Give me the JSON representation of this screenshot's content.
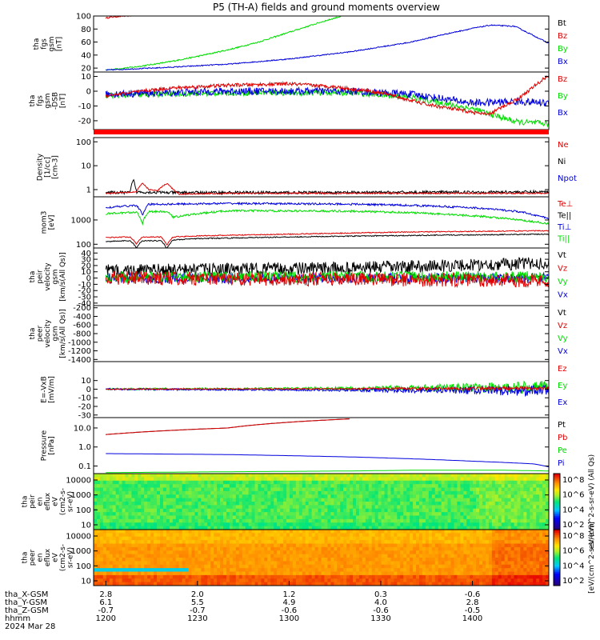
{
  "title": "P5 (TH-A) fields and ground moments overview",
  "colors": {
    "black": "#000000",
    "red": "#e00000",
    "green": "#00dd00",
    "blue": "#0000dd",
    "accent_bar": "#ff0000"
  },
  "chart_data": [
    {
      "type": "line",
      "id": "fgs-btot",
      "ylabel": [
        "tha",
        "fgs",
        "gsm",
        "[nT]"
      ],
      "yticks": [
        "100",
        "80",
        "60",
        "40",
        "20"
      ],
      "ylim": [
        14,
        100
      ],
      "legend": [
        {
          "label": "Bt",
          "color": "black"
        },
        {
          "label": "Bz",
          "color": "red"
        },
        {
          "label": "By",
          "color": "green"
        },
        {
          "label": "Bx",
          "color": "blue"
        }
      ],
      "series": [
        {
          "color": "red",
          "noise": 1.2,
          "x": [
            0,
            3,
            6,
            9
          ],
          "y": [
            97,
            99,
            100,
            101
          ]
        },
        {
          "color": "green",
          "noise": 1.0,
          "x": [
            0,
            10,
            20,
            30,
            40,
            50,
            60,
            70,
            78
          ],
          "y": [
            17,
            22,
            29,
            38,
            48,
            60,
            75,
            90,
            101
          ]
        },
        {
          "color": "blue",
          "noise": 0.8,
          "x": [
            0,
            20,
            40,
            60,
            80,
            100,
            110,
            120,
            126,
            134,
            140,
            145
          ],
          "y": [
            17,
            21,
            26,
            34,
            45,
            60,
            71,
            81,
            86,
            84,
            70,
            58
          ]
        }
      ]
    },
    {
      "type": "line",
      "id": "fgs-comp",
      "ylabel": [
        "tha",
        "fgs",
        "gsm",
        "-DSB",
        "[nT]"
      ],
      "yticks": [
        "10",
        "0",
        "-10",
        "-20"
      ],
      "ylim": [
        -26,
        13
      ],
      "legend": [
        {
          "label": "Bz",
          "color": "red"
        },
        {
          "label": "By",
          "color": "green"
        },
        {
          "label": "Bx",
          "color": "blue"
        }
      ],
      "series": [
        {
          "color": "green",
          "noise": 2.0,
          "x": [
            0,
            40,
            80,
            100,
            120,
            135,
            145
          ],
          "y": [
            -3,
            -1,
            -1,
            -4,
            -12,
            -21,
            -22
          ]
        },
        {
          "color": "blue",
          "noise": 2.5,
          "x": [
            0,
            40,
            80,
            100,
            110,
            120,
            135,
            145
          ],
          "y": [
            -2,
            0,
            0,
            -2,
            -5,
            -8,
            -7,
            -8
          ]
        },
        {
          "color": "red",
          "noise": 1.2,
          "x": [
            0,
            20,
            40,
            60,
            75,
            90,
            105,
            125,
            135,
            145
          ],
          "y": [
            -3,
            2,
            4,
            5,
            3,
            -1,
            -9,
            -16,
            -5,
            11
          ]
        }
      ]
    },
    {
      "type": "line",
      "id": "density",
      "log": true,
      "ylabel": [
        "Density",
        "[1/cc]",
        "[cm-3]"
      ],
      "yticks": [
        "100",
        "10",
        "1"
      ],
      "ylim": [
        0.5,
        150
      ],
      "legend": [
        {
          "label": "Ne",
          "color": "red"
        },
        {
          "label": "Ni",
          "color": "black"
        },
        {
          "label": "Npot",
          "color": "blue"
        }
      ],
      "series": [
        {
          "color": "black",
          "noise": 0.12,
          "x": [
            0,
            8,
            9,
            10,
            20,
            80,
            145
          ],
          "y": [
            0.75,
            0.75,
            2.5,
            0.8,
            0.75,
            0.75,
            0.8
          ]
        },
        {
          "color": "red",
          "noise": 0.05,
          "x": [
            0,
            10,
            12,
            14,
            17,
            20,
            22,
            24,
            40,
            145
          ],
          "y": [
            0.7,
            0.8,
            1.8,
            1.0,
            0.9,
            1.8,
            1.0,
            0.65,
            0.7,
            0.7
          ]
        }
      ]
    },
    {
      "type": "line",
      "id": "temp",
      "log": true,
      "ylabel": [
        "mom3",
        "[eV]"
      ],
      "yticks": [
        "1000",
        "100"
      ],
      "ylim": [
        70,
        9000
      ],
      "legend": [
        {
          "label": "Te⊥",
          "color": "red"
        },
        {
          "label": "Te||",
          "color": "black"
        },
        {
          "label": "Ti⊥",
          "color": "blue"
        },
        {
          "label": "Ti||",
          "color": "green"
        }
      ],
      "series": [
        {
          "color": "blue",
          "noise": 0.08,
          "x": [
            0,
            10,
            12,
            14,
            40,
            80,
            100,
            120,
            135,
            145
          ],
          "y": [
            3200,
            4000,
            1500,
            4400,
            4800,
            4500,
            4000,
            3200,
            2200,
            1100
          ]
        },
        {
          "color": "green",
          "noise": 0.08,
          "x": [
            0,
            10,
            12,
            14,
            20,
            22,
            40,
            80,
            100,
            120,
            135,
            145
          ],
          "y": [
            1800,
            2100,
            700,
            2200,
            2200,
            1300,
            2400,
            2300,
            2000,
            1500,
            1000,
            700
          ]
        },
        {
          "color": "red",
          "noise": 0.04,
          "x": [
            0,
            8,
            10,
            12,
            18,
            20,
            22,
            30,
            60,
            100,
            145
          ],
          "y": [
            190,
            200,
            100,
            200,
            200,
            90,
            200,
            220,
            260,
            320,
            360
          ]
        },
        {
          "color": "black",
          "noise": 0.04,
          "x": [
            0,
            8,
            10,
            12,
            18,
            20,
            22,
            30,
            60,
            100,
            145
          ],
          "y": [
            130,
            140,
            70,
            140,
            140,
            65,
            150,
            170,
            200,
            230,
            260
          ]
        }
      ]
    },
    {
      "type": "line",
      "id": "peir-vel",
      "ylabel": [
        "tha",
        "peir",
        "velocity",
        "gsm",
        "[km/s(All Qs)]"
      ],
      "yticks": [
        "40",
        "30",
        "20",
        "10",
        "0",
        "-10",
        "-20",
        "-30",
        "-40"
      ],
      "ylim": [
        -44,
        48
      ],
      "legend": [
        {
          "label": "Vt",
          "color": "black"
        },
        {
          "label": "Vz",
          "color": "red"
        },
        {
          "label": "Vy",
          "color": "green"
        },
        {
          "label": "Vx",
          "color": "blue"
        }
      ],
      "series": [
        {
          "color": "black",
          "noise": 10,
          "x": [
            0,
            80,
            145
          ],
          "y": [
            12,
            16,
            24
          ]
        },
        {
          "color": "blue",
          "noise": 8,
          "x": [
            0,
            145
          ],
          "y": [
            0,
            0
          ]
        },
        {
          "color": "green",
          "noise": 9,
          "x": [
            0,
            145
          ],
          "y": [
            2,
            2
          ]
        },
        {
          "color": "red",
          "noise": 11,
          "x": [
            0,
            80,
            145
          ],
          "y": [
            0,
            -2,
            -4
          ]
        }
      ]
    },
    {
      "type": "line",
      "id": "peer-vel",
      "ylabel": [
        "tha",
        "peer",
        "velocity",
        "gsm",
        "[km/s(All Qs)]"
      ],
      "yticks": [
        "-200",
        "-400",
        "-600",
        "-800",
        "-1000",
        "-1200",
        "-1400"
      ],
      "ylim": [
        -1450,
        -150
      ],
      "legend": [
        {
          "label": "Vt",
          "color": "black"
        },
        {
          "label": "Vz",
          "color": "red"
        },
        {
          "label": "Vy",
          "color": "green"
        },
        {
          "label": "Vx",
          "color": "blue"
        }
      ],
      "series": []
    },
    {
      "type": "line",
      "id": "efield",
      "ylabel": [
        "E=-VxB",
        "[mV/m]"
      ],
      "yticks": [
        "10",
        "0",
        "-10",
        "-20",
        "-30"
      ],
      "ylim": [
        -33,
        32
      ],
      "legend": [
        {
          "label": "Ez",
          "color": "red"
        },
        {
          "label": "Ey",
          "color": "green"
        },
        {
          "label": "Ex",
          "color": "blue"
        }
      ],
      "series": [
        {
          "color": "green",
          "noise": 1.2,
          "growth": 7,
          "x": [
            0,
            145
          ],
          "y": [
            0,
            2
          ]
        },
        {
          "color": "blue",
          "noise": 1.0,
          "growth": 6,
          "x": [
            0,
            145
          ],
          "y": [
            0,
            -2
          ]
        },
        {
          "color": "red",
          "noise": 0.6,
          "growth": 2,
          "x": [
            0,
            145
          ],
          "y": [
            0,
            1
          ]
        }
      ]
    },
    {
      "type": "line",
      "id": "pressure",
      "log": true,
      "ylabel": [
        "Pressure",
        "[nPa]"
      ],
      "yticks": [
        "10.0",
        "1.0",
        "0.1"
      ],
      "ylim": [
        0.04,
        35
      ],
      "legend": [
        {
          "label": "Pt",
          "color": "black"
        },
        {
          "label": "Pb",
          "color": "red"
        },
        {
          "label": "Pe",
          "color": "green"
        },
        {
          "label": "Pi",
          "color": "blue"
        }
      ],
      "series": [
        {
          "color": "black",
          "noise": 0,
          "x": [
            0,
            40,
            80
          ],
          "y": [
            4.5,
            10,
            30
          ]
        },
        {
          "color": "red",
          "noise": 0,
          "x": [
            0,
            40,
            80
          ],
          "y": [
            4.5,
            10,
            30
          ]
        },
        {
          "color": "blue",
          "noise": 0,
          "x": [
            0,
            40,
            80,
            120,
            140,
            145
          ],
          "y": [
            0.45,
            0.4,
            0.3,
            0.18,
            0.13,
            0.09
          ]
        },
        {
          "color": "green",
          "noise": 0,
          "x": [
            0,
            40,
            80,
            100,
            130,
            145
          ],
          "y": [
            0.045,
            0.05,
            0.055,
            0.06,
            0.06,
            0.055
          ]
        }
      ]
    },
    {
      "type": "heatmap",
      "id": "peir-en",
      "ylabel": [
        "tha",
        "peir",
        "en",
        "eflux",
        "eV",
        "(cm2-s-",
        "sr-eV)"
      ],
      "yticks": [
        "10000",
        "1000",
        "100",
        "10"
      ],
      "base": "green"
    },
    {
      "type": "heatmap",
      "id": "peer-en",
      "ylabel": [
        "tha",
        "peer",
        "en",
        "eflux",
        "eV",
        "(cm2-s-",
        "sr-eV)"
      ],
      "yticks": [
        "10000",
        "1000",
        "100",
        "10"
      ],
      "base": "orange"
    }
  ],
  "colorbars": [
    {
      "ticks": [
        "10^8",
        "10^6",
        "10^4",
        "10^2"
      ],
      "label": "eV/(cm^2-s-sr-eV) (All Qs)"
    },
    {
      "ticks": [
        "10^8",
        "10^6",
        "10^4",
        "10^2"
      ],
      "label": "[eV/(cm^2-s-sr-eV)]"
    }
  ],
  "xaxis": {
    "ticks_x": [
      0,
      30,
      60,
      90,
      120
    ],
    "rows": [
      {
        "label": "tha_X-GSM",
        "values": [
          "2.8",
          "2.0",
          "1.2",
          "0.3",
          "-0.6"
        ]
      },
      {
        "label": "tha_Y-GSM",
        "values": [
          "6.1",
          "5.5",
          "4.9",
          "4.0",
          "2.8"
        ]
      },
      {
        "label": "tha_Z-GSM",
        "values": [
          "-0.7",
          "-0.7",
          "-0.6",
          "-0.6",
          "-0.5"
        ]
      },
      {
        "label": "hhmm",
        "values": [
          "1200",
          "1230",
          "1300",
          "1330",
          "1400"
        ]
      }
    ],
    "date": "2024 Mar 28"
  }
}
